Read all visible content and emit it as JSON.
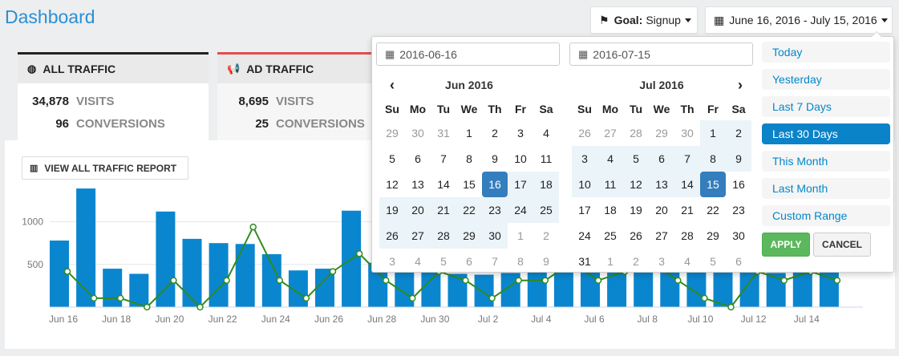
{
  "page": {
    "title": "Dashboard"
  },
  "header": {
    "goal_prefix": "Goal:",
    "goal_value": "Signup",
    "date_range": "June 16, 2016 - July 15, 2016"
  },
  "tabs": [
    {
      "title": "ALL TRAFFIC",
      "visits": "34,878",
      "visits_label": "VISITS",
      "conversions": "96",
      "conversions_label": "CONVERSIONS"
    },
    {
      "title": "AD TRAFFIC",
      "visits": "8,695",
      "visits_label": "VISITS",
      "conversions": "25",
      "conversions_label": "CONVERSIONS"
    }
  ],
  "report_button": "VIEW ALL TRAFFIC REPORT",
  "datepicker": {
    "start": "2016-06-16",
    "end": "2016-07-15",
    "weekdays": [
      "Su",
      "Mo",
      "Tu",
      "We",
      "Th",
      "Fr",
      "Sa"
    ],
    "left": {
      "month": "Jun 2016",
      "weeks": [
        [
          "29",
          "30",
          "31",
          "1",
          "2",
          "3",
          "4"
        ],
        [
          "5",
          "6",
          "7",
          "8",
          "9",
          "10",
          "11"
        ],
        [
          "12",
          "13",
          "14",
          "15",
          "16",
          "17",
          "18"
        ],
        [
          "19",
          "20",
          "21",
          "22",
          "23",
          "24",
          "25"
        ],
        [
          "26",
          "27",
          "28",
          "29",
          "30",
          "1",
          "2"
        ],
        [
          "3",
          "4",
          "5",
          "6",
          "7",
          "8",
          "9"
        ]
      ]
    },
    "right": {
      "month": "Jul 2016",
      "weeks": [
        [
          "26",
          "27",
          "28",
          "29",
          "30",
          "1",
          "2"
        ],
        [
          "3",
          "4",
          "5",
          "6",
          "7",
          "8",
          "9"
        ],
        [
          "10",
          "11",
          "12",
          "13",
          "14",
          "15",
          "16"
        ],
        [
          "17",
          "18",
          "19",
          "20",
          "21",
          "22",
          "23"
        ],
        [
          "24",
          "25",
          "26",
          "27",
          "28",
          "29",
          "30"
        ],
        [
          "31",
          "1",
          "2",
          "3",
          "4",
          "5",
          "6"
        ]
      ]
    },
    "ranges": [
      "Today",
      "Yesterday",
      "Last 7 Days",
      "Last 30 Days",
      "This Month",
      "Last Month",
      "Custom Range"
    ],
    "active_range": "Last 30 Days",
    "apply_label": "APPLY",
    "cancel_label": "CANCEL"
  },
  "colors": {
    "bar": "#0a86cf",
    "line": "#2e8b1e",
    "accent": "#2a8fd6",
    "selected_day": "#357ebd"
  },
  "chart_data": {
    "type": "bar",
    "categories": [
      "Jun 16",
      "Jun 17",
      "Jun 18",
      "Jun 19",
      "Jun 20",
      "Jun 21",
      "Jun 22",
      "Jun 23",
      "Jun 24",
      "Jun 25",
      "Jun 26",
      "Jun 27",
      "Jun 28",
      "Jun 29",
      "Jun 30",
      "Jul 1",
      "Jul 2",
      "Jul 3",
      "Jul 4",
      "Jul 5",
      "Jul 6",
      "Jul 7",
      "Jul 8",
      "Jul 9",
      "Jul 10",
      "Jul 11",
      "Jul 12",
      "Jul 13",
      "Jul 14",
      "Jul 15"
    ],
    "x_tick_labels": [
      "Jun 16",
      "Jun 18",
      "Jun 20",
      "Jun 22",
      "Jun 24",
      "Jun 26",
      "Jun 28",
      "Jun 30",
      "Jul 2",
      "Jul 4",
      "Jul 6",
      "Jul 8",
      "Jul 10",
      "Jul 12",
      "Jul 14"
    ],
    "series": [
      {
        "type": "bar",
        "values": [
          780,
          1390,
          450,
          390,
          1120,
          800,
          750,
          740,
          620,
          430,
          450,
          1130,
          520,
          440,
          420,
          390,
          380,
          400,
          420,
          410,
          420,
          440,
          430,
          420,
          410,
          420,
          410,
          400,
          420,
          410
        ]
      },
      {
        "type": "line",
        "values": [
          4,
          1,
          1,
          0,
          3,
          0,
          3,
          9,
          3,
          1,
          4,
          6,
          3,
          1,
          4,
          3,
          1,
          3,
          3,
          5,
          3,
          4,
          5,
          3,
          1,
          0,
          4,
          3,
          4,
          3
        ]
      }
    ],
    "y_tick_labels": [
      "500",
      "1000"
    ],
    "ylim": [
      0,
      1400
    ],
    "grid": true
  }
}
